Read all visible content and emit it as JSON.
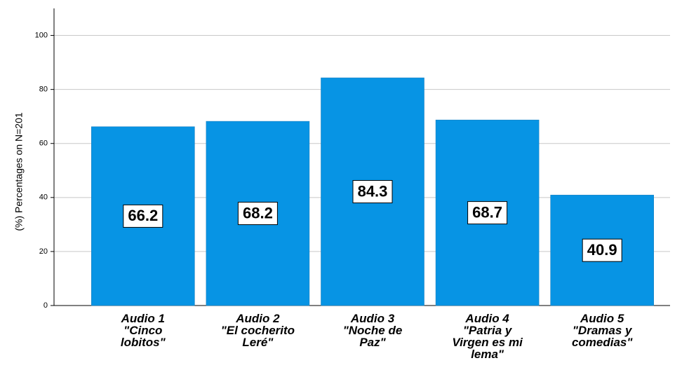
{
  "chart_data": {
    "type": "bar",
    "y_label": "(%) Percentages on N=201",
    "categories": [
      "Audio 1\n\"Cinco\nlobitos\"",
      "Audio 2\n\"El cocherito\nLeré\"",
      "Audio 3\n\"Noche de\nPaz\"",
      "Audio 4\n\"Patria y\nVirgen es mi\nlema\"",
      "Audio 5\n\"Dramas y\ncomedias\""
    ],
    "values": [
      66.2,
      68.2,
      84.3,
      68.7,
      40.9
    ],
    "color": "#0794e4",
    "ylim": [
      0,
      110
    ],
    "yticks": [
      0,
      20,
      40,
      60,
      80,
      100
    ],
    "grid": true
  }
}
